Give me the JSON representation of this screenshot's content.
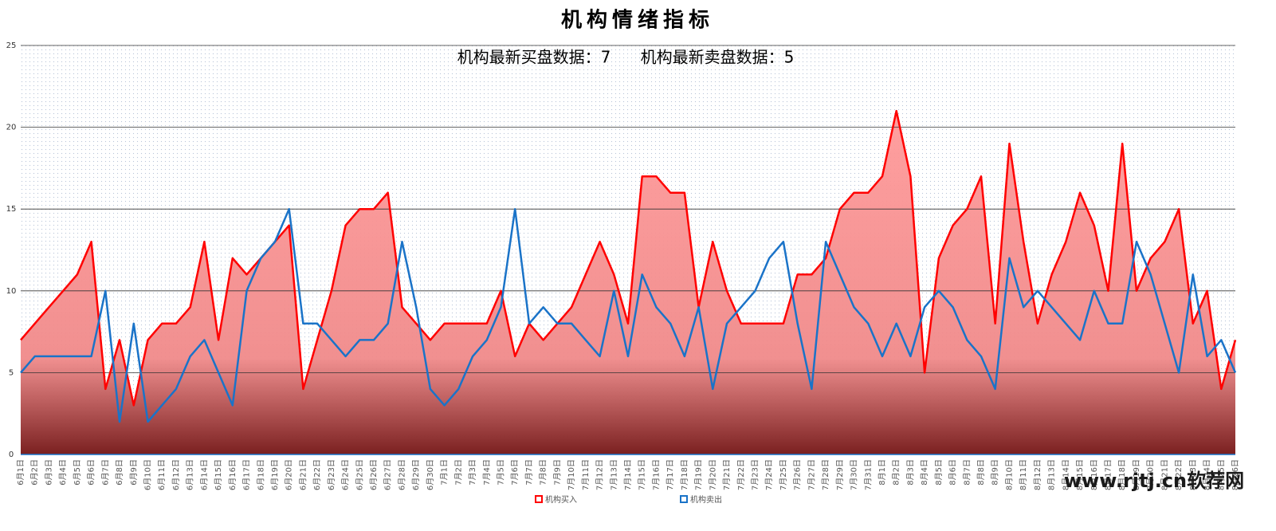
{
  "chart_data": {
    "type": "area-line",
    "title": "机构情绪指标",
    "subtitle": [
      "机构最新买盘数据：7",
      "机构最新卖盘数据：5"
    ],
    "watermark": "www.rjtj.cn软荐网",
    "categories": [
      "6月1日",
      "6月2日",
      "6月3日",
      "6月4日",
      "6月5日",
      "6月6日",
      "6月7日",
      "6月8日",
      "6月9日",
      "6月10日",
      "6月11日",
      "6月12日",
      "6月13日",
      "6月14日",
      "6月15日",
      "6月16日",
      "6月17日",
      "6月18日",
      "6月19日",
      "6月20日",
      "6月21日",
      "6月22日",
      "6月23日",
      "6月24日",
      "6月25日",
      "6月26日",
      "6月27日",
      "6月28日",
      "6月29日",
      "6月30日",
      "7月1日",
      "7月2日",
      "7月3日",
      "7月4日",
      "7月5日",
      "7月6日",
      "7月7日",
      "7月8日",
      "7月9日",
      "7月10日",
      "7月11日",
      "7月12日",
      "7月13日",
      "7月14日",
      "7月15日",
      "7月16日",
      "7月17日",
      "7月18日",
      "7月19日",
      "7月20日",
      "7月21日",
      "7月22日",
      "7月23日",
      "7月24日",
      "7月25日",
      "7月26日",
      "7月27日",
      "7月28日",
      "7月29日",
      "7月30日",
      "7月31日",
      "8月1日",
      "8月2日",
      "8月3日",
      "8月4日",
      "8月5日",
      "8月6日",
      "8月7日",
      "8月8日",
      "8月9日",
      "8月10日",
      "8月11日",
      "8月12日",
      "8月13日",
      "8月14日",
      "8月15日",
      "8月16日",
      "8月17日",
      "8月18日",
      "8月19日",
      "8月20日",
      "8月21日",
      "8月22日",
      "8月23日",
      "8月24日",
      "8月25日",
      "8月26日"
    ],
    "series": [
      {
        "name": "机构买入",
        "color": "#ff0000",
        "fill": true,
        "values": [
          7,
          8,
          9,
          10,
          11,
          13,
          4,
          7,
          3,
          7,
          8,
          8,
          9,
          13,
          7,
          12,
          11,
          12,
          13,
          14,
          4,
          7,
          10,
          14,
          15,
          15,
          16,
          9,
          8,
          7,
          8,
          8,
          8,
          8,
          10,
          6,
          8,
          7,
          8,
          9,
          11,
          13,
          11,
          8,
          17,
          17,
          16,
          16,
          9,
          13,
          10,
          8,
          8,
          8,
          8,
          11,
          11,
          12,
          15,
          16,
          16,
          17,
          21,
          17,
          5,
          12,
          14,
          15,
          17,
          8,
          19,
          13,
          8,
          11,
          13,
          16,
          14,
          10,
          19,
          10,
          12,
          13,
          15,
          8,
          10,
          4,
          7
        ]
      },
      {
        "name": "机构卖出",
        "color": "#1a73c8",
        "fill": false,
        "values": [
          5,
          6,
          6,
          6,
          6,
          6,
          10,
          2,
          8,
          2,
          3,
          4,
          6,
          7,
          5,
          3,
          10,
          12,
          13,
          15,
          8,
          8,
          7,
          6,
          7,
          7,
          8,
          13,
          9,
          4,
          3,
          4,
          6,
          7,
          9,
          15,
          8,
          9,
          8,
          8,
          7,
          6,
          10,
          6,
          11,
          9,
          8,
          6,
          9,
          4,
          8,
          9,
          10,
          12,
          13,
          8,
          4,
          13,
          11,
          9,
          8,
          6,
          8,
          6,
          9,
          10,
          9,
          7,
          6,
          4,
          12,
          9,
          10,
          9,
          8,
          7,
          10,
          8,
          8,
          13,
          11,
          8,
          5,
          11,
          6,
          7,
          5
        ]
      }
    ],
    "ylim": [
      0,
      25
    ],
    "yticks": [
      0,
      5,
      10,
      15,
      20,
      25
    ],
    "grid": true,
    "legend": "bottom"
  }
}
